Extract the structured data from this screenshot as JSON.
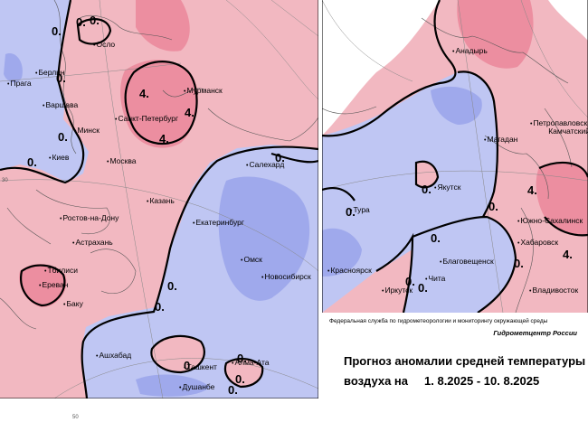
{
  "colors": {
    "warm_anomaly": "#f2b8c1",
    "strong_warm": "#ec8ea0",
    "cold_anomaly": "#bfc6f3",
    "strong_cold": "#9fa9ec",
    "isoline": "#000000"
  },
  "left_map": {
    "cities": [
      "Осло",
      "Берлин",
      "Прага",
      "Варшава",
      "Мурманск",
      "Санкт-Петербург",
      "Минск",
      "Киев",
      "Москва",
      "Салехард",
      "Казань",
      "Ростов-на-Дону",
      "Екатеринбург",
      "Астрахань",
      "Тбилиси",
      "Ереван",
      "Баку",
      "Омск",
      "Новосибирск",
      "Ашхабад",
      "Ташкент",
      "Алма-Ата",
      "Душанбе"
    ],
    "isoline_labels": [
      "0.",
      "0.",
      "0.",
      "0.",
      "4.",
      "4.",
      "4.",
      "0.",
      "0.",
      "0.",
      "0.",
      "0.",
      "0.",
      "0.",
      "0.",
      "0."
    ],
    "ticks": [
      "30",
      "50"
    ]
  },
  "right_map": {
    "cities": [
      "Анадырь",
      "Петропавловск-Камчатский",
      "Магадан",
      "Якутск",
      "Тура",
      "Южно-Сахалинск",
      "Хабаровск",
      "Благовещенск",
      "Красноярск",
      "Иркутск",
      "Чита",
      "Владивосток"
    ],
    "isoline_labels": [
      "0.",
      "0.",
      "0.",
      "4.",
      "4.",
      "0.",
      "0.",
      "0.",
      "0."
    ]
  },
  "info": {
    "agency": "Федеральная служба по гидрометеорологии и мониторингу окружающей среды",
    "center": "Гидрометцентр России",
    "title_line1": "Прогноз аномалии средней температуры",
    "title_line2_prefix": "воздуха на",
    "period": "1. 8.2025 - 10. 8.2025"
  }
}
